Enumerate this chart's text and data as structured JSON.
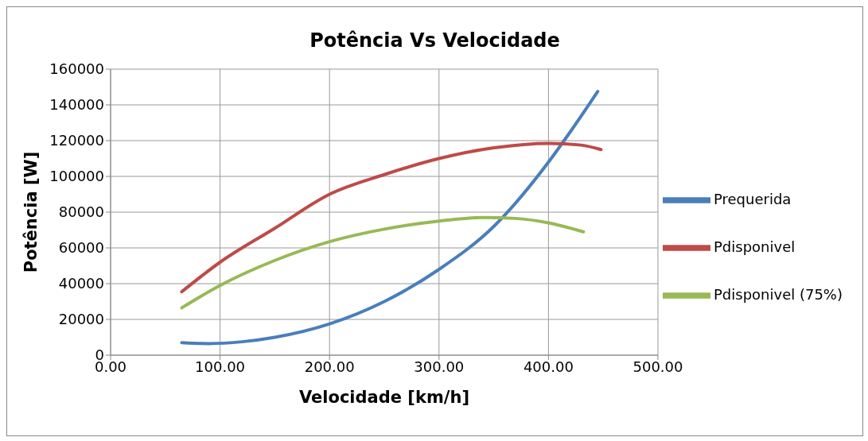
{
  "chart_data": {
    "type": "line",
    "title": "Potência Vs Velocidade",
    "xlabel": "Velocidade [km/h]",
    "ylabel": "Potência [W]",
    "xlim": [
      0,
      500
    ],
    "xticks": [
      {
        "value": 0,
        "label": "0.00"
      },
      {
        "value": 100,
        "label": "100.00"
      },
      {
        "value": 200,
        "label": "200.00"
      },
      {
        "value": 300,
        "label": "300.00"
      },
      {
        "value": 400,
        "label": "400.00"
      },
      {
        "value": 500,
        "label": "500.00"
      }
    ],
    "ylim": [
      0,
      160000
    ],
    "yticks": [
      0,
      20000,
      40000,
      60000,
      80000,
      100000,
      120000,
      140000,
      160000
    ],
    "grid": true,
    "legend": "right",
    "marker": "none",
    "line_style": "solid",
    "series": [
      {
        "name": "Prequerida",
        "color": "#4a7ebb",
        "x": [
          65,
          90,
          120,
          150,
          200,
          250,
          300,
          350,
          400,
          420,
          445
        ],
        "values": [
          7000,
          6500,
          7500,
          10000,
          17500,
          30000,
          48000,
          72000,
          108000,
          125000,
          147500
        ]
      },
      {
        "name": "Pdisponivel",
        "color": "#be4b48",
        "x": [
          65,
          100,
          150,
          200,
          250,
          300,
          350,
          400,
          430,
          448
        ],
        "values": [
          35500,
          52000,
          71000,
          90000,
          101000,
          110000,
          116000,
          118500,
          117500,
          115000
        ]
      },
      {
        "name": "Pdisponivel (75%)",
        "color": "#98b954",
        "x": [
          65,
          100,
          150,
          200,
          250,
          300,
          340,
          370,
          400,
          432
        ],
        "values": [
          26500,
          39000,
          53000,
          63500,
          70500,
          75000,
          77000,
          76500,
          74000,
          69000
        ]
      }
    ]
  }
}
